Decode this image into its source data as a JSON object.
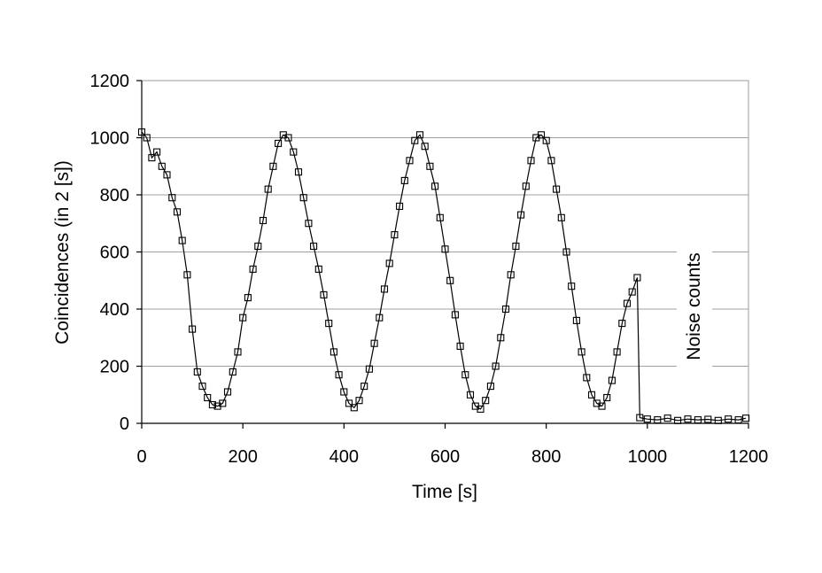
{
  "chart_data": {
    "type": "line",
    "xlabel": "Time [s]",
    "ylabel": "Coincidences (in 2 [s])",
    "xlim": [
      0,
      1200
    ],
    "ylim": [
      0,
      1200
    ],
    "xticks": [
      "0",
      "200",
      "400",
      "600",
      "800",
      "1000",
      "1200"
    ],
    "yticks": [
      "0",
      "200",
      "400",
      "600",
      "800",
      "1000",
      "1200"
    ],
    "grid": "horizontal",
    "marker": "open-square",
    "annotation": "Noise counts",
    "series": [
      {
        "x": [
          0,
          10,
          20,
          30,
          40,
          50,
          60,
          70,
          80,
          90,
          100,
          110,
          120,
          130,
          140,
          150,
          160,
          170,
          180,
          190,
          200,
          210,
          220,
          230,
          240,
          250,
          260,
          270,
          280,
          290,
          300,
          310,
          320,
          330,
          340,
          350,
          360,
          370,
          380,
          390,
          400,
          410,
          420,
          430,
          440,
          450,
          460,
          470,
          480,
          490,
          500,
          510,
          520,
          530,
          540,
          550,
          560,
          570,
          580,
          590,
          600,
          610,
          620,
          630,
          640,
          650,
          660,
          670,
          680,
          690,
          700,
          710,
          720,
          730,
          740,
          750,
          760,
          770,
          780,
          790,
          800,
          810,
          820,
          830,
          840,
          850,
          860,
          870,
          880,
          890,
          900,
          910,
          920,
          930,
          940,
          950,
          960,
          970,
          980,
          985,
          1000,
          1020,
          1040,
          1060,
          1080,
          1100,
          1120,
          1140,
          1160,
          1180,
          1195
        ],
        "y": [
          1020,
          1000,
          930,
          950,
          900,
          870,
          790,
          740,
          640,
          520,
          330,
          180,
          130,
          90,
          65,
          60,
          70,
          110,
          180,
          250,
          370,
          440,
          540,
          620,
          710,
          820,
          900,
          980,
          1010,
          1000,
          950,
          880,
          790,
          700,
          620,
          540,
          450,
          350,
          250,
          170,
          110,
          70,
          55,
          80,
          130,
          190,
          280,
          370,
          470,
          560,
          660,
          760,
          850,
          920,
          990,
          1010,
          970,
          900,
          830,
          720,
          610,
          500,
          380,
          270,
          170,
          100,
          60,
          50,
          80,
          130,
          200,
          300,
          400,
          520,
          620,
          730,
          830,
          920,
          1000,
          1010,
          990,
          920,
          820,
          720,
          600,
          480,
          360,
          250,
          160,
          100,
          70,
          60,
          90,
          150,
          250,
          350,
          420,
          460,
          510,
          20,
          15,
          12,
          18,
          10,
          15,
          12,
          14,
          10,
          15,
          12,
          18
        ]
      }
    ]
  }
}
